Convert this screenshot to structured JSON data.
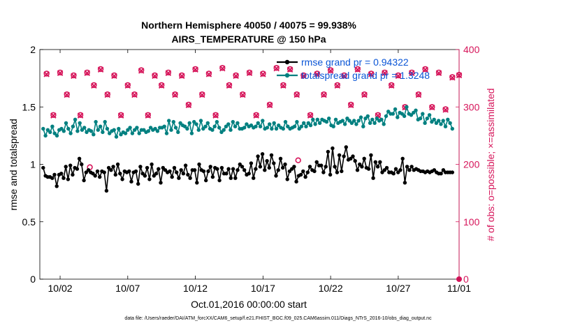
{
  "chart_data": {
    "type": "line",
    "title": "Northern Hemisphere 40050 / 40075 = 99.938%",
    "subtitle": "AIRS_TEMPERATURE @ 150 hPa",
    "xlabel": "Oct.01,2016 00:00:00 start",
    "ylabel": "rmse and totalspread",
    "y2label": "# of obs: o=possible; ×=assimilated",
    "xlim": [
      0.5,
      31.5
    ],
    "ylim": [
      0,
      2
    ],
    "y2lim": [
      0,
      400
    ],
    "x_ticks": [
      2,
      7,
      12,
      17,
      22,
      27,
      32
    ],
    "x_tick_labels": [
      "10/02",
      "10/07",
      "10/12",
      "10/17",
      "10/22",
      "10/27",
      "11/01"
    ],
    "y_ticks": [
      0,
      0.5,
      1,
      1.5,
      2
    ],
    "y_tick_labels": [
      "0",
      "0.5",
      "1",
      "1.5",
      "2"
    ],
    "y2_ticks": [
      0,
      100,
      200,
      300,
      400
    ],
    "y2_tick_labels": [
      "0",
      "100",
      "200",
      "300",
      "400"
    ],
    "legend_position": "top-right",
    "colors": {
      "rmse": "#000000",
      "totalspread": "#008080",
      "obs": "#d6155a",
      "legend_text": "#0a55d6"
    },
    "series": [
      {
        "name": "rmse grand pr = 0.94322",
        "axis": "left",
        "values": [
          0.97,
          0.9,
          0.89,
          0.89,
          0.88,
          0.91,
          0.81,
          0.91,
          0.92,
          0.88,
          0.98,
          0.87,
          0.99,
          0.91,
          0.97,
          0.96,
          1.05,
          1.0,
          0.86,
          0.93,
          0.95,
          0.93,
          0.92,
          0.9,
          0.94,
          0.89,
          0.94,
          0.93,
          0.77,
          0.97,
          0.95,
          0.98,
          0.91,
          1.0,
          0.92,
          0.87,
          0.94,
          0.93,
          0.94,
          0.85,
          0.93,
          0.94,
          0.83,
          0.98,
          0.92,
          0.9,
          0.97,
          0.87,
          1.0,
          0.9,
          0.92,
          0.96,
          0.84,
          0.97,
          0.95,
          0.93,
          0.94,
          0.89,
          0.97,
          0.93,
          0.88,
          0.95,
          0.92,
          0.99,
          0.91,
          0.88,
          0.95,
          0.95,
          0.84,
          1.0,
          0.95,
          0.94,
          0.86,
          0.94,
          0.98,
          0.89,
          0.97,
          0.96,
          0.86,
          0.97,
          0.92,
          0.92,
          0.96,
          0.88,
          0.96,
          0.88,
          0.95,
          1.0,
          0.98,
          0.95,
          0.91,
          0.92,
          1.01,
          0.88,
          0.96,
          1.07,
          0.98,
          1.09,
          0.95,
          1.03,
          0.97,
          1.08,
          1.01,
          0.9,
          0.95,
          1.05,
          0.97,
          1.0,
          0.87,
          0.94,
          0.96,
          0.98,
          0.85,
          0.9,
          0.91,
          0.94,
          0.89,
          0.93,
          0.98,
          0.95,
          0.94,
          1.02,
          0.99,
          0.99,
          0.93,
          0.98,
          1.11,
          0.91,
          1.14,
          0.98,
          0.93,
          1.08,
          0.94,
          1.07,
          1.15,
          1.04,
          1.05,
          1.07,
          1.03,
          0.95,
          1.0,
          0.98,
          1.05,
          0.97,
          0.96,
          1.08,
          0.88,
          1.02,
          0.98,
          1.02,
          0.93,
          0.95,
          0.97,
          0.93,
          0.93,
          0.92,
          0.96,
          0.93,
          0.95,
          1.05,
          0.84,
          0.98,
          0.95,
          0.98,
          0.95,
          0.96,
          0.95,
          0.94,
          0.94,
          0.93,
          0.94,
          0.93,
          0.94,
          0.95,
          0.93,
          0.92,
          0.92,
          0.95,
          0.93,
          0.93,
          0.93,
          0.93
        ]
      },
      {
        "name": "totalspread grand pr = 1.3248",
        "axis": "left",
        "values": [
          1.31,
          1.25,
          1.3,
          1.28,
          1.33,
          1.27,
          1.25,
          1.3,
          1.31,
          1.29,
          1.36,
          1.31,
          1.27,
          1.33,
          1.39,
          1.29,
          1.36,
          1.3,
          1.32,
          1.28,
          1.3,
          1.29,
          1.26,
          1.37,
          1.3,
          1.33,
          1.28,
          1.37,
          1.31,
          1.27,
          1.29,
          1.3,
          1.24,
          1.31,
          1.26,
          1.28,
          1.27,
          1.3,
          1.32,
          1.27,
          1.3,
          1.32,
          1.27,
          1.3,
          1.3,
          1.28,
          1.29,
          1.32,
          1.3,
          1.31,
          1.29,
          1.32,
          1.32,
          1.33,
          1.27,
          1.38,
          1.3,
          1.37,
          1.32,
          1.28,
          1.36,
          1.34,
          1.33,
          1.31,
          1.36,
          1.27,
          1.37,
          1.35,
          1.3,
          1.38,
          1.31,
          1.33,
          1.36,
          1.31,
          1.3,
          1.33,
          1.37,
          1.32,
          1.28,
          1.3,
          1.33,
          1.35,
          1.3,
          1.37,
          1.33,
          1.36,
          1.31,
          1.31,
          1.32,
          1.35,
          1.33,
          1.34,
          1.32,
          1.33,
          1.36,
          1.33,
          1.38,
          1.31,
          1.32,
          1.35,
          1.31,
          1.36,
          1.31,
          1.34,
          1.32,
          1.31,
          1.37,
          1.33,
          1.31,
          1.32,
          1.33,
          1.37,
          1.31,
          1.33,
          1.36,
          1.33,
          1.36,
          1.34,
          1.39,
          1.35,
          1.39,
          1.36,
          1.39,
          1.38,
          1.37,
          1.4,
          1.34,
          1.33,
          1.39,
          1.36,
          1.37,
          1.38,
          1.35,
          1.4,
          1.38,
          1.36,
          1.38,
          1.35,
          1.38,
          1.41,
          1.33,
          1.4,
          1.42,
          1.36,
          1.39,
          1.36,
          1.4,
          1.38,
          1.39,
          1.35,
          1.42,
          1.46,
          1.44,
          1.44,
          1.48,
          1.41,
          1.45,
          1.44,
          1.42,
          1.5,
          1.44,
          1.43,
          1.45,
          1.47,
          1.39,
          1.4,
          1.44,
          1.36,
          1.4,
          1.43,
          1.37,
          1.39,
          1.36,
          1.38,
          1.35,
          1.38,
          1.33,
          1.39,
          1.36,
          1.31
        ]
      },
      {
        "name": "# of obs (possible)",
        "axis": "right",
        "marker": "o",
        "x": [
          1,
          1.5,
          2,
          2.5,
          3,
          3.5,
          4,
          4.5,
          5,
          5.5,
          6,
          6.5,
          7,
          7.5,
          8,
          8.5,
          9,
          9.5,
          10,
          10.5,
          11,
          11.5,
          12,
          12.5,
          13,
          13.5,
          14,
          14.5,
          15,
          15.5,
          16,
          16.5,
          17,
          17.5,
          18,
          18.5,
          19,
          19.5,
          20,
          20.5,
          21,
          21.5,
          22,
          22.5,
          23,
          23.5,
          24,
          24.5,
          25,
          25.5,
          26,
          26.5,
          27,
          27.5,
          28,
          28.5,
          29,
          29.5,
          30,
          30.5,
          31,
          31.5
        ],
        "values": [
          358,
          286,
          360,
          322,
          355,
          286,
          360,
          338,
          366,
          322,
          355,
          286,
          338,
          322,
          364,
          286,
          355,
          338,
          360,
          322,
          355,
          304,
          366,
          322,
          358,
          286,
          368,
          338,
          355,
          322,
          360,
          286,
          358,
          304,
          368,
          338,
          366,
          322,
          355,
          286,
          358,
          322,
          364,
          338,
          355,
          304,
          366,
          322,
          358,
          286,
          360,
          338,
          355,
          300,
          360,
          322,
          366,
          300,
          360,
          296,
          352,
          356
        ]
      },
      {
        "name": "# of obs (assimilated)",
        "axis": "right",
        "marker": "x",
        "x": [
          1,
          1.5,
          2,
          2.5,
          3,
          3.5,
          4,
          4.5,
          5,
          5.5,
          6,
          6.5,
          7,
          7.5,
          8,
          8.5,
          9,
          9.5,
          10,
          10.5,
          11,
          11.5,
          12,
          12.5,
          13,
          13.5,
          14,
          14.5,
          15,
          15.5,
          16,
          16.5,
          17,
          17.5,
          18,
          18.5,
          19,
          19.5,
          20,
          20.5,
          21,
          21.5,
          22,
          22.5,
          23,
          23.5,
          24,
          24.5,
          25,
          25.5,
          26,
          26.5,
          27,
          27.5,
          28,
          28.5,
          29,
          29.5,
          30,
          30.5,
          31,
          31.5
        ],
        "values": [
          357,
          285,
          359,
          321,
          354,
          285,
          359,
          337,
          365,
          321,
          354,
          285,
          337,
          321,
          363,
          285,
          354,
          337,
          359,
          321,
          354,
          303,
          365,
          321,
          357,
          285,
          367,
          337,
          354,
          321,
          359,
          285,
          357,
          303,
          367,
          337,
          365,
          321,
          354,
          285,
          357,
          321,
          363,
          337,
          354,
          303,
          365,
          321,
          357,
          285,
          359,
          337,
          354,
          299,
          359,
          321,
          365,
          299,
          359,
          295,
          351,
          355
        ]
      }
    ],
    "extra_obs_markers": [
      {
        "x": 4.2,
        "y2": 195
      },
      {
        "x": 19.6,
        "y2": 207
      }
    ]
  },
  "footer": "data file: /Users/raeder/DAI/ATM_forcXX/CAM6_setup/f.e21.FHIST_BGC.f09_025.CAM6assim.011/Diags_NTrS_2016-10/obs_diag_output.nc"
}
